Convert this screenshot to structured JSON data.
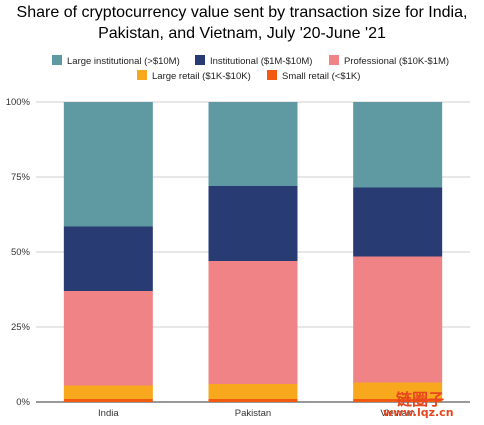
{
  "chart_data": {
    "type": "bar",
    "stacked": true,
    "title_line1": "Share of cryptocurrency value sent by transaction size for India,",
    "title_line2": "Pakistan, and Vietnam, July '20-June '21",
    "categories": [
      "India",
      "Pakistan",
      "Vietnam"
    ],
    "ylim": [
      0,
      100
    ],
    "y_ticks": [
      "0%",
      "25%",
      "50%",
      "75%",
      "100%"
    ],
    "y_tick_values": [
      0,
      25,
      50,
      75,
      100
    ],
    "grid": true,
    "legend_position": "top",
    "series": [
      {
        "name": "Small retail (<$1K)",
        "color": "#f25a0f",
        "values": [
          1.0,
          1.0,
          1.0
        ]
      },
      {
        "name": "Large retail ($1K-$10K)",
        "color": "#f7a81c",
        "values": [
          4.5,
          5.0,
          5.5
        ]
      },
      {
        "name": "Professional ($10K-$1M)",
        "color": "#ef8386",
        "values": [
          31.5,
          41.0,
          42.0
        ]
      },
      {
        "name": "Institutional ($1M-$10M)",
        "color": "#283b73",
        "values": [
          21.5,
          25.0,
          23.0
        ]
      },
      {
        "name": "Large institutional (>$10M)",
        "color": "#5f9aa3",
        "values": [
          41.5,
          28.0,
          28.5
        ]
      }
    ]
  },
  "watermark": {
    "line1": "链圈子",
    "line2": "www.lqz.cn"
  }
}
